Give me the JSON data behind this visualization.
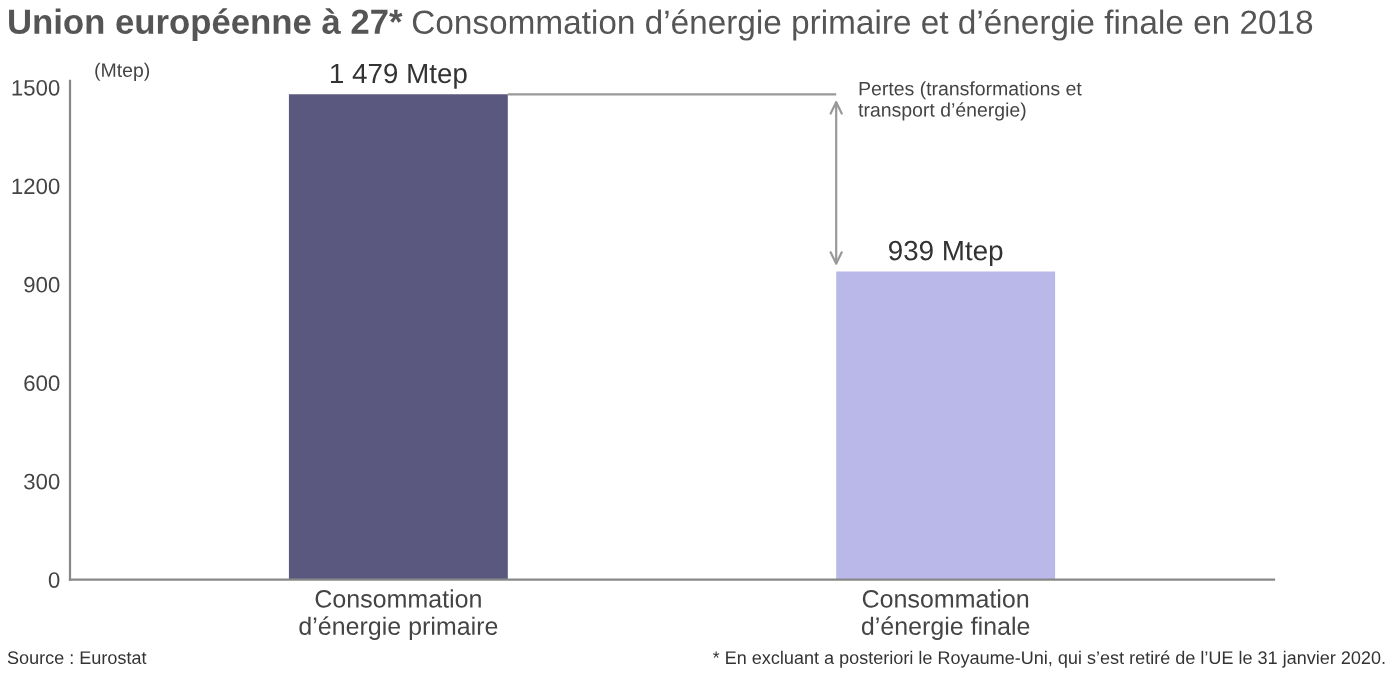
{
  "chart_data": {
    "type": "bar",
    "title": "Union européenne à 27*",
    "subtitle": "Consommation d’énergie primaire et d’énergie finale en 2018",
    "ylabel": "(Mtep)",
    "categories": [
      "Consommation\nd’énergie primaire",
      "Consommation\nd’énergie finale"
    ],
    "values": [
      1479,
      939
    ],
    "colors": [
      "#5b587f",
      "#b9b8e8"
    ],
    "value_labels": [
      "1 479 Mtep",
      "939 Mtep"
    ],
    "ylim": [
      0,
      1520
    ],
    "yticks": [
      0,
      300,
      600,
      900,
      1200,
      1500
    ],
    "grid": false,
    "ref_lines": [
      {
        "axis": "y",
        "value": 1479,
        "color": "#999999"
      }
    ],
    "annotations": [
      "Pertes (transformations et\ntransport d’énergie)",
      "Source : Eurostat",
      "* En excluant a posteriori le Royaume-Uni, qui s’est retiré de l’UE le 31 janvier 2020."
    ]
  }
}
